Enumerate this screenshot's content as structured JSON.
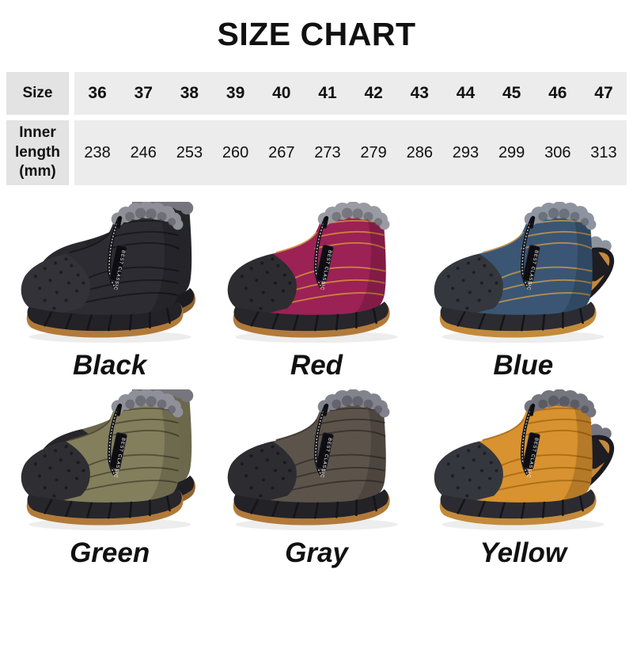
{
  "chart_data": {
    "type": "table",
    "title": "SIZE CHART",
    "row_headers": [
      "Size",
      "Inner length (mm)"
    ],
    "sizes": [
      "36",
      "37",
      "38",
      "39",
      "40",
      "41",
      "42",
      "43",
      "44",
      "45",
      "46",
      "47"
    ],
    "inner_length_mm": [
      "238",
      "246",
      "253",
      "260",
      "267",
      "273",
      "279",
      "286",
      "293",
      "299",
      "306",
      "313"
    ]
  },
  "table_style": {
    "header_cell_bg": "#e3e3e3",
    "data_cell_bg": "#ececec",
    "text_color": "#111111"
  },
  "zipper_tag": "BEST CLASSIC",
  "products": [
    {
      "label": "Black",
      "pose": "pair",
      "colors": {
        "upper": "#2c2c32",
        "upper-dark": "#1b1b20",
        "stitch": "#17171c",
        "fur": "#8f8f98",
        "fur-dark": "#5a5a63",
        "toecap": "#323238",
        "sole": "#222227",
        "gum": "#b27a3a"
      }
    },
    {
      "label": "Red",
      "pose": "single",
      "colors": {
        "upper": "#9c2155",
        "upper-dark": "#771740",
        "stitch": "#d08a3c",
        "fur": "#9a9aa3",
        "fur-dark": "#60606a",
        "toecap": "#2c2c31",
        "sole": "#26262b",
        "gum": "#b27a3a"
      }
    },
    {
      "label": "Blue",
      "pose": "sole-up",
      "colors": {
        "upper": "#3a5674",
        "upper-dark": "#2a415c",
        "stitch": "#bd9350",
        "fur": "#8e949f",
        "fur-dark": "#575d68",
        "toecap": "#34373d",
        "sole": "#2b2b31",
        "gum": "#c38a3b"
      }
    },
    {
      "label": "Green",
      "pose": "pair",
      "colors": {
        "upper": "#837f5d",
        "upper-dark": "#646045",
        "stitch": "#4f4c35",
        "fur": "#90909a",
        "fur-dark": "#585862",
        "toecap": "#2e2e33",
        "sole": "#26262b",
        "gum": "#b27a3a"
      }
    },
    {
      "label": "Gray",
      "pose": "single",
      "colors": {
        "upper": "#5c534b",
        "upper-dark": "#453e37",
        "stitch": "#38322c",
        "fur": "#83838d",
        "fur-dark": "#50505a",
        "toecap": "#2c2c31",
        "sole": "#222227",
        "gum": "#b27a3a"
      }
    },
    {
      "label": "Yellow",
      "pose": "sole-up",
      "colors": {
        "upper": "#d8922f",
        "upper-dark": "#b3751c",
        "stitch": "#a96c15",
        "fur": "#75757f",
        "fur-dark": "#4a4a54",
        "toecap": "#34373d",
        "sole": "#2b2b31",
        "gum": "#c38a3b"
      }
    }
  ]
}
